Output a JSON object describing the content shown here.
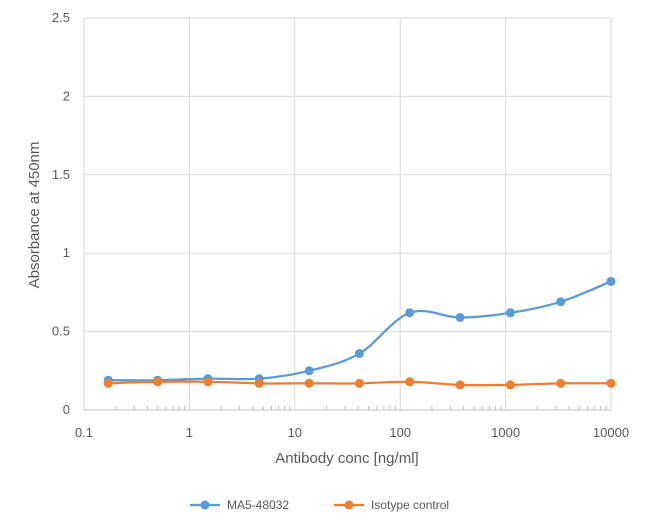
{
  "chart_data": {
    "type": "line",
    "xlabel": "Antibody conc [ng/ml]",
    "ylabel": "Absorbance at 450nm",
    "x_scale": "log",
    "xlim": [
      0.1,
      10000
    ],
    "ylim": [
      0,
      2.5
    ],
    "x_ticks": [
      "0.1",
      "1",
      "10",
      "100",
      "1000",
      "10000"
    ],
    "y_ticks": [
      "0",
      "0.5",
      "1",
      "1.5",
      "2",
      "2.5"
    ],
    "grid": true,
    "legend_position": "bottom",
    "series": [
      {
        "name": "MA5-48032",
        "color": "#5b9bd5",
        "x": [
          0.17,
          0.5,
          1.5,
          4.6,
          13.7,
          41,
          123,
          370,
          1111,
          3333,
          10000
        ],
        "y": [
          0.19,
          0.19,
          0.2,
          0.2,
          0.25,
          0.36,
          0.62,
          0.59,
          0.62,
          0.69,
          0.82
        ]
      },
      {
        "name": "Isotype control",
        "color": "#ed7d31",
        "x": [
          0.17,
          0.5,
          1.5,
          4.6,
          13.7,
          41,
          123,
          370,
          1111,
          3333,
          10000
        ],
        "y": [
          0.17,
          0.18,
          0.18,
          0.17,
          0.17,
          0.17,
          0.18,
          0.16,
          0.16,
          0.17,
          0.17
        ]
      }
    ]
  }
}
